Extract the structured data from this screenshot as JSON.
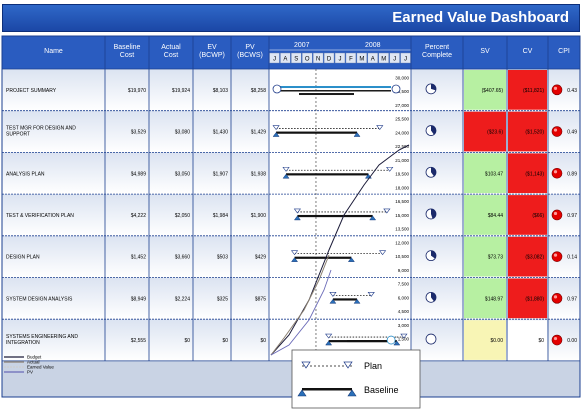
{
  "title": "Earned Value Dashboard",
  "headers": {
    "name": "Name",
    "baseline": [
      "Baseline",
      "Cost"
    ],
    "actual": [
      "Actual",
      "Cost"
    ],
    "ev": [
      "EV",
      "(BCWP)"
    ],
    "pv": [
      "PV",
      "(BCWS)"
    ],
    "year1": "2007",
    "year2": "2008",
    "months": [
      "J",
      "A",
      "S",
      "O",
      "N",
      "D",
      "J",
      "F",
      "M",
      "A",
      "M",
      "J",
      "J"
    ],
    "percent": [
      "Percent",
      "Complete"
    ],
    "sv": "SV",
    "cv": "CV",
    "cpi": "CPI"
  },
  "rows": [
    {
      "name": [
        "PROJECT SUMMARY"
      ],
      "baseline": "$19,970",
      "actual": "$19,924",
      "ev": "$8,103",
      "pv": "$8,258",
      "sv": "($407.65)",
      "cv": "($11,821)",
      "cpi": "0.43",
      "sv_color": "#b7f0a2",
      "cv_color": "#ee1c1c",
      "pct": 0.3
    },
    {
      "name": [
        "TEST MGR FOR DESIGN AND",
        "SUPPORT"
      ],
      "baseline": "$3,529",
      "actual": "$3,080",
      "ev": "$1,430",
      "pv": "$1,429",
      "sv": "($23.6)",
      "cv": "($1,520)",
      "cpi": "0.49",
      "sv_color": "#ee1c1c",
      "cv_color": "#ee1c1c",
      "pct": 0.4
    },
    {
      "name": [
        "ANALYSIS PLAN"
      ],
      "baseline": "$4,989",
      "actual": "$3,050",
      "ev": "$1,907",
      "pv": "$1,938",
      "sv": "$103.47",
      "cv": "($1,143)",
      "cpi": "0.89",
      "sv_color": "#b7f0a2",
      "cv_color": "#ee1c1c",
      "pct": 0.4
    },
    {
      "name": [
        "TEST & VERIFICATION PLAN"
      ],
      "baseline": "$4,222",
      "actual": "$2,050",
      "ev": "$1,984",
      "pv": "$1,900",
      "sv": "$84.44",
      "cv": "($66)",
      "cpi": "0.97",
      "sv_color": "#b7f0a2",
      "cv_color": "#ee1c1c",
      "pct": 0.45
    },
    {
      "name": [
        "DESIGN PLAN"
      ],
      "baseline": "$1,452",
      "actual": "$3,660",
      "ev": "$503",
      "pv": "$429",
      "sv": "$73.73",
      "cv": "($3,082)",
      "cpi": "0.14",
      "sv_color": "#b7f0a2",
      "cv_color": "#ee1c1c",
      "pct": 0.35
    },
    {
      "name": [
        "SYSTEM DESIGN ANALYSIS"
      ],
      "baseline": "$8,949",
      "actual": "$2,224",
      "ev": "$325",
      "pv": "$875",
      "sv": "$148.97",
      "cv": "($1,880)",
      "cpi": "0.97",
      "sv_color": "#b7f0a2",
      "cv_color": "#ee1c1c",
      "pct": 0.4
    },
    {
      "name": [
        "SYSTEMS ENGINEERING AND",
        "INTEGRATION"
      ],
      "baseline": "$2,555",
      "actual": "$0",
      "ev": "$0",
      "pv": "$0",
      "sv": "$0.00",
      "cv": "$0",
      "cpi": "0.00",
      "sv_color": "#f8f5b5",
      "cv_color": "#ffffff",
      "pct": 0
    }
  ],
  "axis_ticks": [
    "30,000",
    "28,500",
    "27,000",
    "25,500",
    "24,000",
    "22,500",
    "21,000",
    "19,500",
    "18,000",
    "16,500",
    "15,000",
    "13,500",
    "12,000",
    "10,500",
    "9,000",
    "7,500",
    "6,000",
    "4,500",
    "3,000",
    "1,500"
  ],
  "chart_legend": [
    "Budget",
    "Actual",
    "Earned Value",
    "PV"
  ],
  "popup_legend": {
    "plan": "Plan",
    "baseline": "Baseline"
  },
  "colors": {
    "header": "#2a5cc0",
    "cpi_indicator": "#e30000",
    "sv_green": "#b7f0a2",
    "cv_red": "#ee1c1c"
  }
}
